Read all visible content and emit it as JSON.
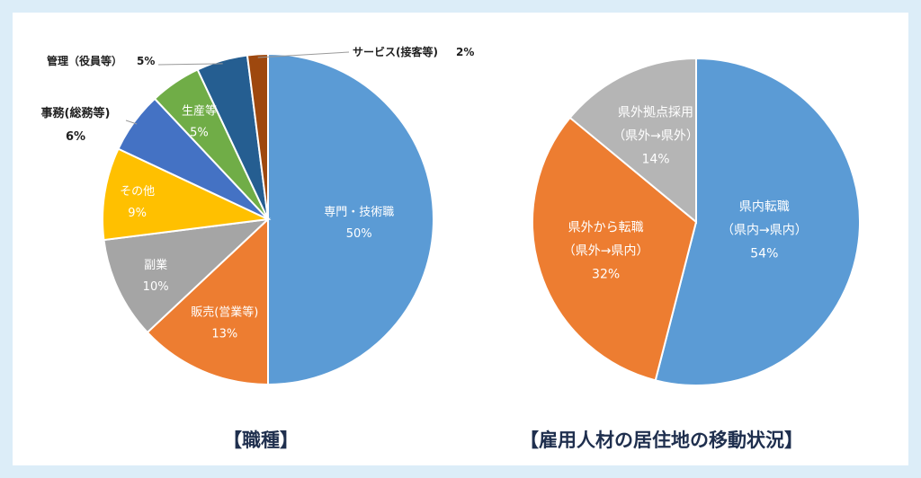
{
  "chart_data": [
    {
      "type": "pie",
      "title": "【職種】",
      "slices": [
        {
          "label": "専門・技術職",
          "value": 50,
          "pct": "50%",
          "color": "#5b9bd5",
          "text_color": "#ffffff"
        },
        {
          "label": "販売(営業等)",
          "value": 13,
          "pct": "13%",
          "color": "#ed7d31",
          "text_color": "#ffffff"
        },
        {
          "label": "副業",
          "value": 10,
          "pct": "10%",
          "color": "#a5a5a5",
          "text_color": "#ffffff"
        },
        {
          "label": "その他",
          "value": 9,
          "pct": "9%",
          "color": "#ffc000",
          "text_color": "#ffffff"
        },
        {
          "label": "事務(総務等)",
          "value": 6,
          "pct": "6%",
          "color": "#4472c4",
          "text_color": "#1f1f1f"
        },
        {
          "label": "生産等",
          "value": 5,
          "pct": "5%",
          "color": "#70ad47",
          "text_color": "#ffffff"
        },
        {
          "label": "管理（役員等）",
          "value": 5,
          "pct": "5%",
          "color": "#255e91",
          "text_color": "#1f1f1f"
        },
        {
          "label": "サービス(接客等)",
          "value": 2,
          "pct": "2%",
          "color": "#9e480e",
          "text_color": "#1f1f1f"
        }
      ]
    },
    {
      "type": "pie",
      "title": "【雇用人材の居住地の移動状況】",
      "slices": [
        {
          "label": "県内転職",
          "sublabel": "（県内→県内）",
          "value": 54,
          "pct": "54%",
          "color": "#5b9bd5",
          "text_color": "#ffffff"
        },
        {
          "label": "県外から転職",
          "sublabel": "（県外→県内）",
          "value": 32,
          "pct": "32%",
          "color": "#ed7d31",
          "text_color": "#ffffff"
        },
        {
          "label": "県外拠点採用",
          "sublabel": "（県外→県外）",
          "value": 14,
          "pct": "14%",
          "color": "#b5b5b5",
          "text_color": "#ffffff"
        }
      ]
    }
  ]
}
